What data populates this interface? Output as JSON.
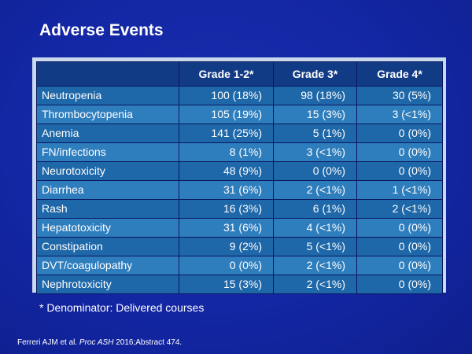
{
  "title": "Adverse Events",
  "table": {
    "headers": [
      "",
      "Grade 1-2*",
      "Grade 3*",
      "Grade 4*"
    ],
    "rows": [
      [
        "Neutropenia",
        "100 (18%)",
        "98 (18%)",
        "30 (5%)"
      ],
      [
        "Thrombocytopenia",
        "105 (19%)",
        "15 (3%)",
        "3 (<1%)"
      ],
      [
        "Anemia",
        "141 (25%)",
        "5 (1%)",
        "0 (0%)"
      ],
      [
        "FN/infections",
        "8 (1%)",
        "3 (<1%)",
        "0 (0%)"
      ],
      [
        "Neurotoxicity",
        "48 (9%)",
        "0 (0%)",
        "0 (0%)"
      ],
      [
        "Diarrhea",
        "31 (6%)",
        "2 (<1%)",
        "1 (<1%)"
      ],
      [
        "Rash",
        "16 (3%)",
        "6 (1%)",
        "2 (<1%)"
      ],
      [
        "Hepatotoxicity",
        "31 (6%)",
        "4 (<1%)",
        "0 (0%)"
      ],
      [
        "Constipation",
        "9 (2%)",
        "5 (<1%)",
        "0 (0%)"
      ],
      [
        "DVT/coagulopathy",
        "0 (0%)",
        "2 (<1%)",
        "0 (0%)"
      ],
      [
        "Nephrotoxicity",
        "15 (3%)",
        "2 (<1%)",
        "0 (0%)"
      ]
    ]
  },
  "footnote": "* Denominator: Delivered courses",
  "citation": {
    "prefix": "Ferreri AJM et al. ",
    "journal": "Proc ASH",
    "suffix": " 2016;Abstract 474."
  },
  "colors": {
    "background": "#1326a4",
    "header_fill": "#123b86",
    "row_fill_a": "#1e67a8",
    "row_fill_b": "#2e7dbd",
    "table_frame": "#c7d9ea"
  }
}
